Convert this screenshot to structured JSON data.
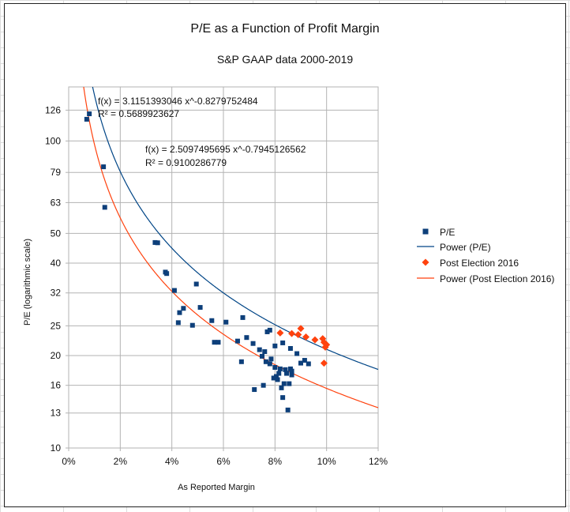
{
  "chart_data": {
    "type": "scatter",
    "title": "P/E as a Function of Profit Margin",
    "subtitle": "S&P GAAP data 2000-2019",
    "xlabel": "As Reported Margin",
    "ylabel": "P/E  (logarithmic scale)",
    "x_scale": "linear",
    "y_scale": "log",
    "xlim": [
      0,
      0.12
    ],
    "ylim": [
      10,
      150
    ],
    "x_ticks": [
      0,
      0.02,
      0.04,
      0.06,
      0.08,
      0.1,
      0.12
    ],
    "x_tick_labels": [
      "0%",
      "2%",
      "4%",
      "6%",
      "8%",
      "10%",
      "12%"
    ],
    "y_ticks": [
      10,
      13,
      16,
      20,
      25,
      32,
      40,
      50,
      63,
      79,
      100,
      126
    ],
    "y_tick_labels": [
      "10",
      "13",
      "16",
      "20",
      "25",
      "32",
      "40",
      "50",
      "63",
      "79",
      "100",
      "126"
    ],
    "grid": true,
    "legend_position": "right",
    "series": [
      {
        "name": "P/E",
        "kind": "points",
        "marker": "square",
        "color": "#0d3f7a",
        "points": [
          [
            0.007,
            117.7
          ],
          [
            0.008,
            122.6
          ],
          [
            0.0135,
            82.4
          ],
          [
            0.014,
            60.8
          ],
          [
            0.0335,
            46.7
          ],
          [
            0.0345,
            46.6
          ],
          [
            0.0375,
            37.4
          ],
          [
            0.038,
            37.0
          ],
          [
            0.041,
            32.6
          ],
          [
            0.0425,
            25.6
          ],
          [
            0.043,
            27.6
          ],
          [
            0.0445,
            28.5
          ],
          [
            0.048,
            25.1
          ],
          [
            0.0495,
            34.2
          ],
          [
            0.051,
            28.7
          ],
          [
            0.0555,
            26.0
          ],
          [
            0.0565,
            22.1
          ],
          [
            0.058,
            22.1
          ],
          [
            0.061,
            25.7
          ],
          [
            0.0655,
            22.3
          ],
          [
            0.067,
            19.1
          ],
          [
            0.0675,
            26.6
          ],
          [
            0.069,
            22.9
          ],
          [
            0.0715,
            21.9
          ],
          [
            0.072,
            15.5
          ],
          [
            0.074,
            20.9
          ],
          [
            0.075,
            19.9
          ],
          [
            0.0755,
            16.0
          ],
          [
            0.076,
            20.6
          ],
          [
            0.0765,
            19.1
          ],
          [
            0.077,
            23.9
          ],
          [
            0.078,
            24.2
          ],
          [
            0.078,
            18.8
          ],
          [
            0.0785,
            19.5
          ],
          [
            0.0795,
            16.9
          ],
          [
            0.08,
            21.5
          ],
          [
            0.08,
            18.3
          ],
          [
            0.0805,
            17.1
          ],
          [
            0.081,
            16.7
          ],
          [
            0.0815,
            17.5
          ],
          [
            0.082,
            18.1
          ],
          [
            0.0825,
            15.7
          ],
          [
            0.083,
            14.6
          ],
          [
            0.083,
            22.0
          ],
          [
            0.0835,
            16.2
          ],
          [
            0.084,
            18.0
          ],
          [
            0.0845,
            17.5
          ],
          [
            0.085,
            13.3
          ],
          [
            0.0855,
            16.2
          ],
          [
            0.086,
            18.1
          ],
          [
            0.086,
            21.1
          ],
          [
            0.0865,
            17.3
          ],
          [
            0.0865,
            17.8
          ],
          [
            0.0885,
            20.3
          ],
          [
            0.09,
            18.9
          ],
          [
            0.0915,
            19.3
          ],
          [
            0.093,
            18.8
          ]
        ]
      },
      {
        "name": "Post Election 2016",
        "kind": "points",
        "marker": "diamond",
        "color": "#ff420e",
        "points": [
          [
            0.082,
            23.7
          ],
          [
            0.0865,
            23.6
          ],
          [
            0.089,
            23.4
          ],
          [
            0.09,
            24.5
          ],
          [
            0.092,
            23.0
          ],
          [
            0.0955,
            22.5
          ],
          [
            0.0985,
            22.7
          ],
          [
            0.099,
            22.1
          ],
          [
            0.0995,
            21.3
          ],
          [
            0.1,
            21.7
          ],
          [
            0.099,
            18.9
          ]
        ]
      },
      {
        "name": "Power (P/E)",
        "kind": "trendline",
        "color": "#004586",
        "coefficient": 3.1151393046,
        "exponent": -0.8279752484,
        "equation": "f(x) = 3.1151393046 x^-0.8279752484",
        "r_squared": "R² = 0.5689923627"
      },
      {
        "name": "Power (Post Election 2016)",
        "kind": "trendline",
        "color": "#ff420e",
        "coefficient": 2.5097495695,
        "exponent": -0.7945126562,
        "equation": "f(x) = 2.5097495695 x^-0.7945126562",
        "r_squared": "R² = 0.9100286779"
      }
    ],
    "legend": [
      {
        "label": "P/E",
        "symbol": "square",
        "color": "#0d3f7a"
      },
      {
        "label": "Power (P/E)",
        "symbol": "line",
        "color": "#004586"
      },
      {
        "label": "Post Election 2016",
        "symbol": "diamond",
        "color": "#ff420e"
      },
      {
        "label": "Power (Post Election 2016)",
        "symbol": "line",
        "color": "#ff420e"
      }
    ]
  }
}
